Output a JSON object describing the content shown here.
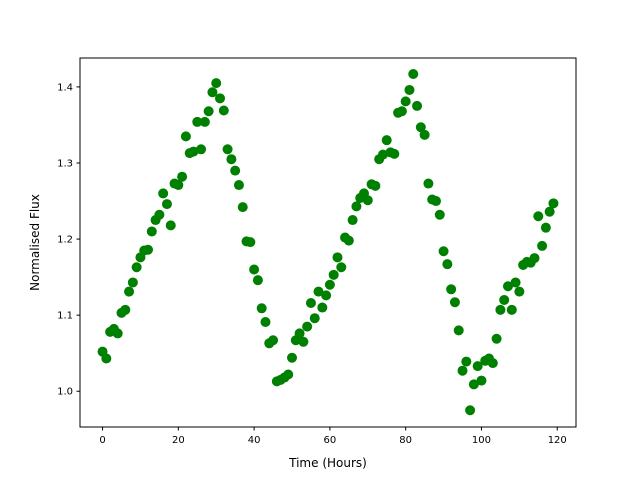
{
  "chart_data": {
    "type": "scatter",
    "title": "",
    "xlabel": "Time (Hours)",
    "ylabel": "Normalised Flux",
    "xlim": [
      -5.95,
      124.95
    ],
    "ylim": [
      0.953,
      1.438
    ],
    "xticks": [
      0,
      20,
      40,
      60,
      80,
      100,
      120
    ],
    "xtick_labels": [
      "0",
      "20",
      "40",
      "60",
      "80",
      "100",
      "120"
    ],
    "yticks": [
      1.0,
      1.1,
      1.2,
      1.3,
      1.4
    ],
    "ytick_labels": [
      "1.0",
      "1.1",
      "1.2",
      "1.3",
      "1.4"
    ],
    "grid": false,
    "marker_color": "#008000",
    "x": [
      0,
      1,
      2,
      3,
      4,
      5,
      6,
      7,
      8,
      9,
      10,
      11,
      12,
      13,
      14,
      15,
      16,
      17,
      18,
      19,
      20,
      21,
      22,
      23,
      24,
      25,
      26,
      27,
      28,
      29,
      30,
      31,
      32,
      33,
      34,
      35,
      36,
      37,
      38,
      39,
      40,
      41,
      42,
      43,
      44,
      45,
      46,
      47,
      48,
      49,
      50,
      51,
      52,
      53,
      54,
      55,
      56,
      57,
      58,
      59,
      60,
      61,
      62,
      63,
      64,
      65,
      66,
      67,
      68,
      69,
      70,
      71,
      72,
      73,
      74,
      75,
      76,
      77,
      78,
      79,
      80,
      81,
      82,
      83,
      84,
      85,
      86,
      87,
      88,
      89,
      90,
      91,
      92,
      93,
      94,
      95,
      96,
      97,
      98,
      99,
      100,
      101,
      102,
      103,
      104,
      105,
      106,
      107,
      108,
      109,
      110,
      111,
      112,
      113,
      114,
      115,
      116,
      117,
      118,
      119
    ],
    "y": [
      1.052,
      1.043,
      1.078,
      1.082,
      1.076,
      1.103,
      1.107,
      1.131,
      1.143,
      1.163,
      1.176,
      1.185,
      1.186,
      1.21,
      1.225,
      1.232,
      1.26,
      1.246,
      1.218,
      1.273,
      1.271,
      1.282,
      1.335,
      1.313,
      1.315,
      1.354,
      1.318,
      1.354,
      1.368,
      1.393,
      1.405,
      1.385,
      1.369,
      1.318,
      1.305,
      1.29,
      1.271,
      1.242,
      1.197,
      1.196,
      1.16,
      1.146,
      1.109,
      1.091,
      1.063,
      1.067,
      1.013,
      1.015,
      1.018,
      1.022,
      1.044,
      1.067,
      1.076,
      1.065,
      1.085,
      1.116,
      1.096,
      1.131,
      1.11,
      1.126,
      1.14,
      1.153,
      1.176,
      1.163,
      1.202,
      1.198,
      1.225,
      1.243,
      1.254,
      1.26,
      1.251,
      1.272,
      1.27,
      1.305,
      1.311,
      1.33,
      1.314,
      1.312,
      1.366,
      1.368,
      1.381,
      1.396,
      1.417,
      1.375,
      1.347,
      1.337,
      1.273,
      1.252,
      1.25,
      1.232,
      1.184,
      1.167,
      1.134,
      1.117,
      1.08,
      1.027,
      1.039,
      0.975,
      1.009,
      1.033,
      1.014,
      1.04,
      1.043,
      1.037,
      1.069,
      1.107,
      1.12,
      1.138,
      1.107,
      1.143,
      1.131,
      1.166,
      1.17,
      1.169,
      1.175,
      1.23,
      1.191,
      1.215,
      1.236,
      1.247
    ]
  }
}
